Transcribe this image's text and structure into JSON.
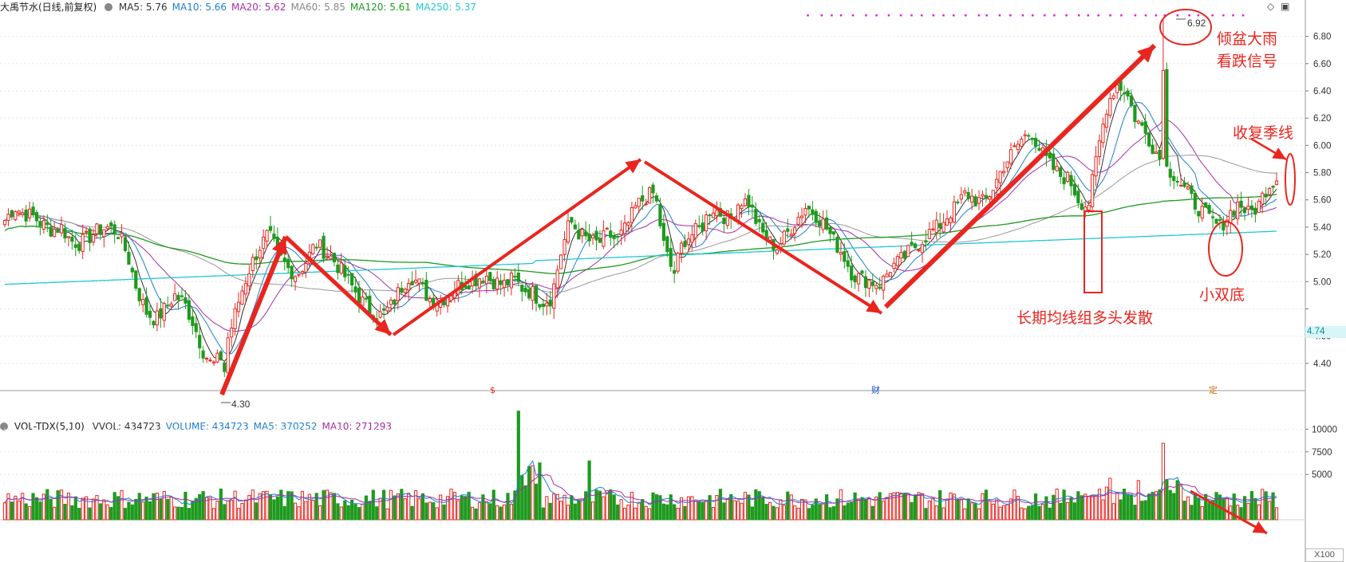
{
  "price_panel": {
    "stock_label": "大禹节水(日线,前复权)",
    "indicators": [
      {
        "label": "MA5: 5.76",
        "color": "#333333"
      },
      {
        "label": "MA10: 5.66",
        "color": "#1e7fd0"
      },
      {
        "label": "MA20: 5.62",
        "color": "#a52fa5"
      },
      {
        "label": "MA60: 5.85",
        "color": "#888888"
      },
      {
        "label": "MA120: 5.61",
        "color": "#1f9a1f"
      },
      {
        "label": "MA250: 5.37",
        "color": "#1ec8d6"
      }
    ],
    "current_price_tag": "4.74",
    "high_label": "6.92",
    "low_label": "4.30"
  },
  "volume_panel": {
    "indicator_label": "VOL-TDX(5,10)",
    "items": [
      {
        "label": "VVOL: 434723",
        "color": "#333333"
      },
      {
        "label": "VOLUME: 434723",
        "color": "#1e7fd0"
      },
      {
        "label": "MA5: 370252",
        "color": "#1e7fd0"
      },
      {
        "label": "MA10: 271293",
        "color": "#a52fa5"
      }
    ],
    "unit_label": "X100"
  },
  "markers": [
    {
      "text": "$",
      "color": "#e8261f"
    },
    {
      "text": "财",
      "color": "#1e4fd0"
    },
    {
      "text": "定",
      "color": "#d07010"
    }
  ],
  "annotations": {
    "heavy_rain_line1": "倾盆大雨",
    "heavy_rain_line2": "看跌信号",
    "recover_quarter": "收复季线",
    "long_ma_divergence": "长期均线组多头发散",
    "small_double_bottom": "小双底"
  },
  "colors": {
    "up": "#e8261f",
    "down": "#1f9a1f",
    "annotation": "#e8261f",
    "grid": "#e6e6e6"
  },
  "chart_data": [
    {
      "type": "candlestick",
      "title": "大禹节水(日线,前复权)",
      "ylim": [
        4.2,
        6.95
      ],
      "y_ticks": [
        4.4,
        4.6,
        4.8,
        5.0,
        5.2,
        5.4,
        5.6,
        5.8,
        6.0,
        6.2,
        6.4,
        6.6,
        6.8
      ],
      "y_tick_labels": [
        "4.40",
        "4.60",
        "",
        "5.00",
        "5.20",
        "5.40",
        "5.60",
        "5.80",
        "6.00",
        "6.20",
        "6.40",
        "6.60",
        "6.80"
      ],
      "low": 4.3,
      "high": 6.92,
      "trend_waypoints_close": [
        5.45,
        5.55,
        5.5,
        5.48,
        5.42,
        5.38,
        5.4,
        5.3,
        5.28,
        5.33,
        5.38,
        5.4,
        5.36,
        5.2,
        4.95,
        4.78,
        4.72,
        4.8,
        4.9,
        4.85,
        4.7,
        4.5,
        4.38,
        4.45,
        4.65,
        4.9,
        5.1,
        5.25,
        5.35,
        5.2,
        5.1,
        5.05,
        5.15,
        5.28,
        5.22,
        5.15,
        5.05,
        4.95,
        4.85,
        4.78,
        4.75,
        4.82,
        4.95,
        5.05,
        4.98,
        4.88,
        4.85,
        4.9,
        4.97,
        5.0,
        5.02,
        5.05,
        5.0,
        4.98,
        5.02,
        4.95,
        4.92,
        4.85,
        4.88,
        5.2,
        5.45,
        5.35,
        5.3,
        5.28,
        5.35,
        5.3,
        5.4,
        5.55,
        5.62,
        5.65,
        5.25,
        5.05,
        5.3,
        5.35,
        5.4,
        5.55,
        5.5,
        5.45,
        5.6,
        5.58,
        5.4,
        5.3,
        5.25,
        5.35,
        5.45,
        5.55,
        5.5,
        5.42,
        5.3,
        5.2,
        5.05,
        5.02,
        5.0,
        4.98,
        5.1,
        5.15,
        5.22,
        5.28,
        5.35,
        5.4,
        5.48,
        5.55,
        5.65,
        5.6,
        5.58,
        5.7,
        5.85,
        5.95,
        6.05,
        6.1,
        5.95,
        5.85,
        5.78,
        5.75,
        5.6,
        5.55,
        5.95,
        6.3,
        6.45,
        6.4,
        6.2,
        6.1,
        5.98,
        5.85,
        5.8,
        5.7,
        5.6,
        5.52,
        5.45,
        5.4,
        5.5,
        5.58,
        5.5,
        5.55,
        5.7,
        5.76
      ]
    },
    {
      "type": "bar",
      "title": "VOL-TDX(5,10)",
      "ylim": [
        0,
        12500
      ],
      "y_ticks": [
        5000,
        7500,
        10000
      ],
      "y_tick_labels": [
        "5000",
        "7500",
        "10000"
      ],
      "unit": "X100"
    }
  ]
}
